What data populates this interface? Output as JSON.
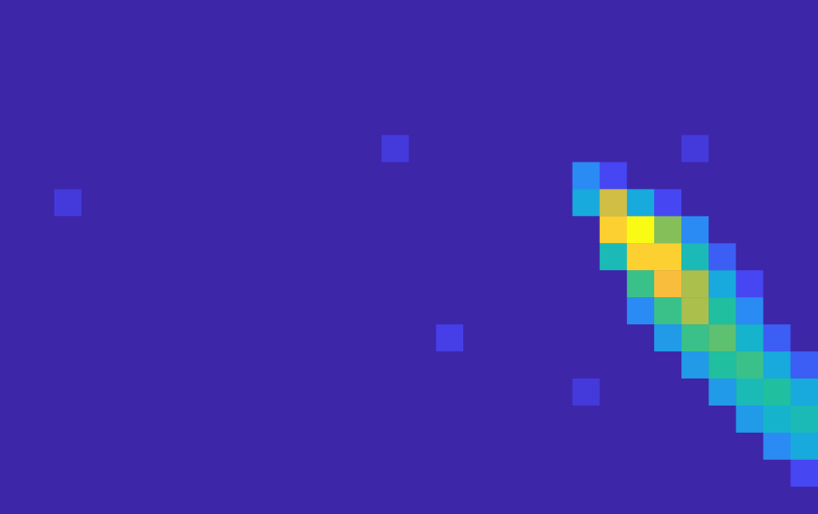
{
  "chart_data": {
    "type": "heatmap",
    "tick_labels": false,
    "color_range": [
      0,
      1
    ],
    "cells": [
      [
        0,
        0,
        0,
        0,
        0,
        0,
        0,
        0,
        0,
        0,
        0,
        0,
        0,
        0,
        0,
        0,
        0,
        0,
        0,
        0,
        0,
        0,
        0,
        0,
        0,
        0,
        0,
        0,
        0,
        0
      ],
      [
        0,
        0,
        0,
        0,
        0,
        0,
        0,
        0,
        0,
        0,
        0,
        0,
        0,
        0,
        0,
        0,
        0,
        0,
        0,
        0,
        0,
        0,
        0,
        0,
        0,
        0,
        0,
        0,
        0,
        0
      ],
      [
        0,
        0,
        0,
        0,
        0,
        0,
        0,
        0,
        0,
        0,
        0,
        0,
        0,
        0,
        0,
        0,
        0,
        0,
        0,
        0,
        0,
        0,
        0,
        0,
        0,
        0,
        0,
        0,
        0,
        0
      ],
      [
        0,
        0,
        0,
        0,
        0,
        0,
        0,
        0,
        0,
        0,
        0,
        0,
        0,
        0,
        0,
        0,
        0,
        0,
        0,
        0,
        0,
        0,
        0,
        0,
        0,
        0,
        0,
        0,
        0,
        0
      ],
      [
        0,
        0,
        0,
        0,
        0,
        0,
        0,
        0,
        0,
        0,
        0,
        0,
        0,
        0,
        0,
        0,
        0,
        0,
        0,
        0,
        0,
        0,
        0,
        0,
        0,
        0,
        0,
        0,
        0,
        0
      ],
      [
        0,
        0,
        0,
        0,
        0,
        0,
        0,
        0,
        0,
        0,
        0,
        0,
        0,
        0,
        0.1,
        0,
        0,
        0,
        0,
        0,
        0,
        0,
        0,
        0,
        0,
        0.1,
        0,
        0,
        0,
        0
      ],
      [
        0,
        0,
        0,
        0,
        0,
        0,
        0,
        0,
        0,
        0,
        0,
        0,
        0,
        0,
        0,
        0,
        0,
        0,
        0,
        0,
        0,
        0.3,
        0.15,
        0,
        0,
        0,
        0,
        0,
        0,
        0
      ],
      [
        0,
        0,
        0.1,
        0,
        0,
        0,
        0,
        0,
        0,
        0,
        0,
        0,
        0,
        0,
        0,
        0,
        0,
        0,
        0,
        0,
        0,
        0.4,
        0.8,
        0.4,
        0.15,
        0,
        0,
        0,
        0,
        0
      ],
      [
        0,
        0,
        0,
        0,
        0,
        0,
        0,
        0,
        0,
        0,
        0,
        0,
        0,
        0,
        0,
        0,
        0,
        0,
        0,
        0,
        0,
        0,
        0.9,
        1,
        0.7,
        0.3,
        0,
        0,
        0,
        0
      ],
      [
        0,
        0,
        0,
        0,
        0,
        0,
        0,
        0,
        0,
        0,
        0,
        0,
        0,
        0,
        0,
        0,
        0,
        0,
        0,
        0,
        0,
        0,
        0.5,
        0.9,
        0.9,
        0.5,
        0.2,
        0,
        0,
        0
      ],
      [
        0,
        0,
        0,
        0,
        0,
        0,
        0,
        0,
        0,
        0,
        0,
        0,
        0,
        0,
        0,
        0,
        0,
        0,
        0,
        0,
        0,
        0,
        0,
        0.6,
        0.85,
        0.75,
        0.4,
        0.15,
        0,
        0
      ],
      [
        0,
        0,
        0,
        0,
        0,
        0,
        0,
        0,
        0,
        0,
        0,
        0,
        0,
        0,
        0,
        0,
        0,
        0,
        0,
        0,
        0,
        0,
        0,
        0.3,
        0.6,
        0.75,
        0.55,
        0.3,
        0,
        0
      ],
      [
        0,
        0,
        0,
        0,
        0,
        0,
        0,
        0,
        0,
        0,
        0,
        0,
        0,
        0,
        0,
        0,
        0.12,
        0,
        0,
        0,
        0,
        0,
        0,
        0,
        0.35,
        0.6,
        0.65,
        0.45,
        0.2,
        0
      ],
      [
        0,
        0,
        0,
        0,
        0,
        0,
        0,
        0,
        0,
        0,
        0,
        0,
        0,
        0,
        0,
        0,
        0,
        0,
        0,
        0,
        0,
        0,
        0,
        0,
        0,
        0.35,
        0.55,
        0.6,
        0.4,
        0.2
      ],
      [
        0,
        0,
        0,
        0,
        0,
        0,
        0,
        0,
        0,
        0,
        0,
        0,
        0,
        0,
        0,
        0,
        0,
        0,
        0,
        0,
        0,
        0.1,
        0,
        0,
        0,
        0,
        0.35,
        0.5,
        0.55,
        0.4
      ],
      [
        0,
        0,
        0,
        0,
        0,
        0,
        0,
        0,
        0,
        0,
        0,
        0,
        0,
        0,
        0,
        0,
        0,
        0,
        0,
        0,
        0,
        0,
        0,
        0,
        0,
        0,
        0,
        0.35,
        0.45,
        0.5
      ],
      [
        0,
        0,
        0,
        0,
        0,
        0,
        0,
        0,
        0,
        0,
        0,
        0,
        0,
        0,
        0,
        0,
        0,
        0,
        0,
        0,
        0,
        0,
        0,
        0,
        0,
        0,
        0,
        0,
        0.3,
        0.4
      ],
      [
        0,
        0,
        0,
        0,
        0,
        0,
        0,
        0,
        0,
        0,
        0,
        0,
        0,
        0,
        0,
        0,
        0,
        0,
        0,
        0,
        0,
        0,
        0,
        0,
        0,
        0,
        0,
        0,
        0,
        0.15
      ],
      [
        0,
        0,
        0,
        0,
        0,
        0,
        0,
        0,
        0,
        0,
        0,
        0,
        0,
        0,
        0,
        0,
        0,
        0,
        0,
        0,
        0,
        0,
        0,
        0,
        0,
        0,
        0,
        0,
        0,
        0
      ]
    ]
  }
}
